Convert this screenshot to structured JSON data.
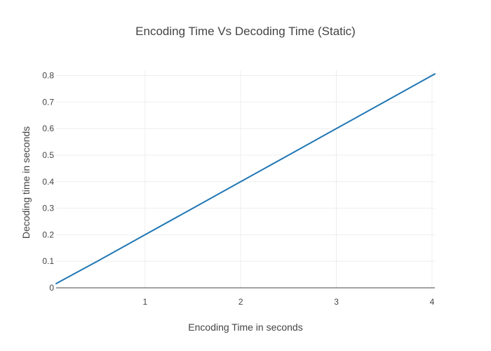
{
  "chart_data": {
    "type": "line",
    "title": "Encoding Time Vs Decoding Time (Static)",
    "xlabel": "Encoding Time in seconds",
    "ylabel": "Decoding time in seconds",
    "xlim": [
      0.07,
      4.03
    ],
    "ylim": [
      0,
      0.82
    ],
    "x_ticks": [
      1,
      2,
      3,
      4
    ],
    "y_ticks": [
      0,
      0.1,
      0.2,
      0.3,
      0.4,
      0.5,
      0.6,
      0.7,
      0.8
    ],
    "grid": true,
    "series": [
      {
        "color": "#1f77b4",
        "x": [
          0.07,
          0.5,
          1.0,
          1.5,
          2.0,
          2.5,
          3.0,
          3.5,
          4.03
        ],
        "y": [
          0.016,
          0.1,
          0.2,
          0.3,
          0.4,
          0.5,
          0.6,
          0.7,
          0.806
        ]
      }
    ]
  }
}
